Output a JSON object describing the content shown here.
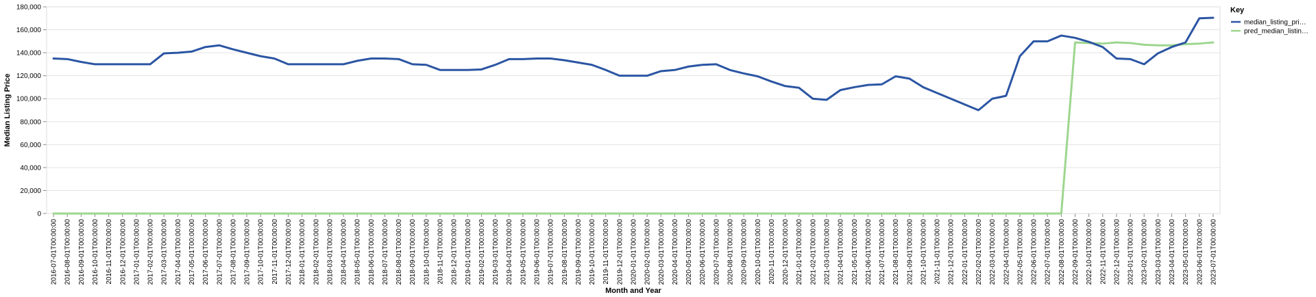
{
  "chart_data": {
    "type": "line",
    "xlabel": "Month and Year",
    "ylabel": "Median Listing Price",
    "ylim": [
      0,
      180000
    ],
    "yticks": [
      "0",
      "20,000",
      "40,000",
      "60,000",
      "80,000",
      "100,000",
      "120,000",
      "140,000",
      "160,000",
      "180,000"
    ],
    "grid": true,
    "legend": {
      "title": "Key",
      "position": "top-right"
    },
    "x": [
      "2016-07-01T00:00:00",
      "2016-08-01T00:00:00",
      "2016-09-01T00:00:00",
      "2016-10-01T00:00:00",
      "2016-11-01T00:00:00",
      "2016-12-01T00:00:00",
      "2017-01-01T00:00:00",
      "2017-02-01T00:00:00",
      "2017-03-01T00:00:00",
      "2017-04-01T00:00:00",
      "2017-05-01T00:00:00",
      "2017-06-01T00:00:00",
      "2017-07-01T00:00:00",
      "2017-08-01T00:00:00",
      "2017-09-01T00:00:00",
      "2017-10-01T00:00:00",
      "2017-11-01T00:00:00",
      "2017-12-01T00:00:00",
      "2018-01-01T00:00:00",
      "2018-02-01T00:00:00",
      "2018-03-01T00:00:00",
      "2018-04-01T00:00:00",
      "2018-05-01T00:00:00",
      "2018-06-01T00:00:00",
      "2018-07-01T00:00:00",
      "2018-08-01T00:00:00",
      "2018-09-01T00:00:00",
      "2018-10-01T00:00:00",
      "2018-11-01T00:00:00",
      "2018-12-01T00:00:00",
      "2019-01-01T00:00:00",
      "2019-02-01T00:00:00",
      "2019-03-01T00:00:00",
      "2019-04-01T00:00:00",
      "2019-05-01T00:00:00",
      "2019-06-01T00:00:00",
      "2019-07-01T00:00:00",
      "2019-08-01T00:00:00",
      "2019-09-01T00:00:00",
      "2019-10-01T00:00:00",
      "2019-11-01T00:00:00",
      "2019-12-01T00:00:00",
      "2020-01-01T00:00:00",
      "2020-02-01T00:00:00",
      "2020-03-01T00:00:00",
      "2020-04-01T00:00:00",
      "2020-05-01T00:00:00",
      "2020-06-01T00:00:00",
      "2020-07-01T00:00:00",
      "2020-08-01T00:00:00",
      "2020-09-01T00:00:00",
      "2020-10-01T00:00:00",
      "2020-11-01T00:00:00",
      "2020-12-01T00:00:00",
      "2021-01-01T00:00:00",
      "2021-02-01T00:00:00",
      "2021-03-01T00:00:00",
      "2021-04-01T00:00:00",
      "2021-05-01T00:00:00",
      "2021-06-01T00:00:00",
      "2021-07-01T00:00:00",
      "2021-08-01T00:00:00",
      "2021-09-01T00:00:00",
      "2021-10-01T00:00:00",
      "2021-11-01T00:00:00",
      "2021-12-01T00:00:00",
      "2022-01-01T00:00:00",
      "2022-02-01T00:00:00",
      "2022-03-01T00:00:00",
      "2022-04-01T00:00:00",
      "2022-05-01T00:00:00",
      "2022-06-01T00:00:00",
      "2022-07-01T00:00:00",
      "2022-08-01T00:00:00",
      "2022-09-01T00:00:00",
      "2022-10-01T00:00:00",
      "2022-11-01T00:00:00",
      "2022-12-01T00:00:00",
      "2023-01-01T00:00:00",
      "2023-02-01T00:00:00",
      "2023-03-01T00:00:00",
      "2023-04-01T00:00:00",
      "2023-05-01T00:00:00",
      "2023-06-01T00:00:00",
      "2023-07-01T00:00:00"
    ],
    "series": [
      {
        "name": "median_listing_pri…",
        "color": "#2b55a3",
        "values": [
          135000,
          134500,
          132000,
          130000,
          130000,
          130000,
          130000,
          130000,
          139500,
          140000,
          141000,
          145000,
          146500,
          143000,
          140000,
          137000,
          135000,
          130000,
          130000,
          130000,
          130000,
          130000,
          133000,
          135000,
          135000,
          134500,
          130000,
          129500,
          125000,
          125000,
          125000,
          125500,
          129500,
          134500,
          134500,
          135000,
          135000,
          133500,
          131500,
          129500,
          125000,
          120000,
          120000,
          120000,
          124000,
          125000,
          128000,
          129500,
          130000,
          125000,
          122000,
          119500,
          115000,
          111000,
          109500,
          100000,
          99000,
          107500,
          110000,
          112000,
          112500,
          119500,
          117500,
          110000,
          105000,
          100000,
          95000,
          90000,
          100000,
          102500,
          137000,
          150000,
          150000,
          155000,
          153000,
          149500,
          145000,
          135000,
          134500,
          130000,
          139500,
          145000,
          149000,
          170000,
          170500
        ]
      },
      {
        "name": "pred_median_listin…",
        "color": "#9dd68e",
        "values": [
          0,
          0,
          0,
          0,
          0,
          0,
          0,
          0,
          0,
          0,
          0,
          0,
          0,
          0,
          0,
          0,
          0,
          0,
          0,
          0,
          0,
          0,
          0,
          0,
          0,
          0,
          0,
          0,
          0,
          0,
          0,
          0,
          0,
          0,
          0,
          0,
          0,
          0,
          0,
          0,
          0,
          0,
          0,
          0,
          0,
          0,
          0,
          0,
          0,
          0,
          0,
          0,
          0,
          0,
          0,
          0,
          0,
          0,
          0,
          0,
          0,
          0,
          0,
          0,
          0,
          0,
          0,
          0,
          0,
          0,
          0,
          0,
          0,
          0,
          149000,
          148500,
          148000,
          149000,
          148500,
          147000,
          146500,
          146500,
          147500,
          148000,
          149000
        ]
      }
    ]
  }
}
